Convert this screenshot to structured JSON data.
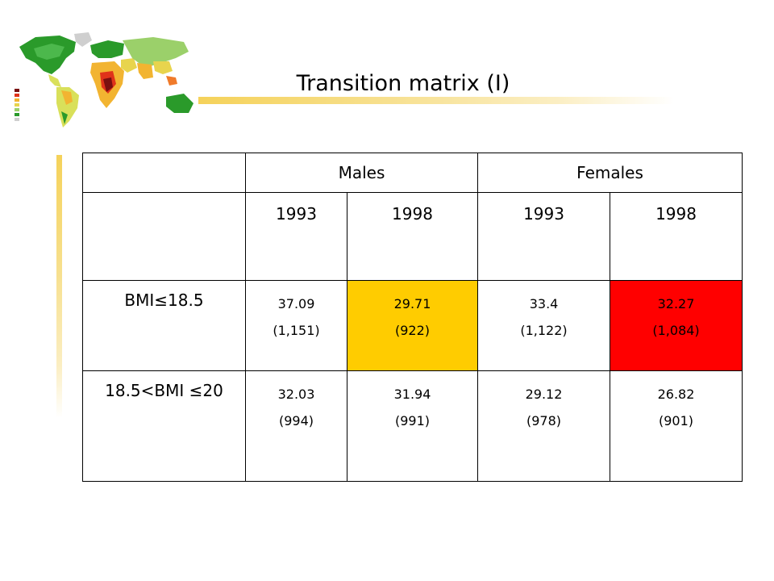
{
  "title": "Transition matrix (I)",
  "colors": {
    "accent_bar": "#f5d25a",
    "highlight_yellow": "#ffcc00",
    "highlight_red": "#ff0000"
  },
  "table": {
    "groups": [
      "Males",
      "Females"
    ],
    "years": [
      "1993",
      "1998",
      "1993",
      "1998"
    ],
    "rows": [
      {
        "label": "BMI≤18.5",
        "cells": [
          {
            "value": "37.09",
            "count": "(1,151)"
          },
          {
            "value": "29.71",
            "count": "(922)"
          },
          {
            "value": "33.4",
            "count": "(1,122)"
          },
          {
            "value": "32.27",
            "count": "(1,084)"
          }
        ]
      },
      {
        "label": "18.5<BMI ≤20",
        "cells": [
          {
            "value": "32.03",
            "count": "(994)"
          },
          {
            "value": "31.94",
            "count": "(991)"
          },
          {
            "value": "29.12",
            "count": "(978)"
          },
          {
            "value": "26.82",
            "count": "(901)"
          }
        ]
      }
    ]
  }
}
